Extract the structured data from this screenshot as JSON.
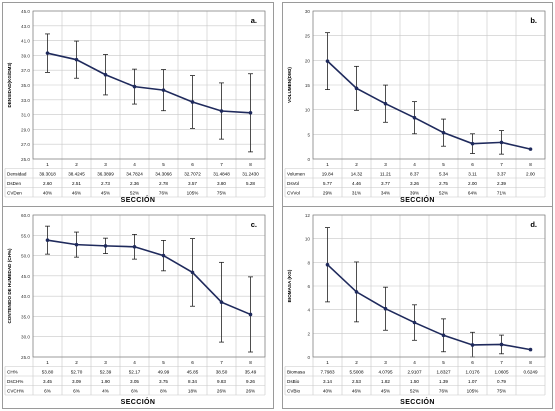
{
  "chart_data": [
    {
      "id": "a",
      "type": "line",
      "panel_letter": "a.",
      "ylabel": "DENSIDAD(KG/DM3)",
      "xlabel": "SECCIÓN",
      "ylim": [
        25.0,
        45.0
      ],
      "yticks": [
        "25.0",
        "27.0",
        "29.0",
        "31.0",
        "33.0",
        "35.0",
        "37.0",
        "39.0",
        "41.0",
        "43.0",
        "45.0"
      ],
      "categories": [
        "1",
        "2",
        "3",
        "4",
        "5",
        "6",
        "7",
        "8"
      ],
      "series": [
        {
          "values": [
            39.3018,
            38.4245,
            36.3899,
            34.7824,
            34.3066,
            32.7072,
            31.4848,
            31.243
          ],
          "errors": [
            2.6,
            2.51,
            2.73,
            2.36,
            2.78,
            3.57,
            3.8,
            5.28
          ]
        }
      ],
      "table": [
        {
          "label": "Densidad",
          "values": [
            "39.3018",
            "38.4245",
            "36.3899",
            "34.7824",
            "34.3066",
            "32.7072",
            "31.4848",
            "31.2430"
          ]
        },
        {
          "label": "DsDen",
          "values": [
            "2.60",
            "2.51",
            "2.73",
            "2.36",
            "2.78",
            "3.57",
            "3.80",
            "5.28"
          ]
        },
        {
          "label": "CVDen",
          "values": [
            "40%",
            "46%",
            "45%",
            "52%",
            "76%",
            "105%",
            "75%",
            ""
          ]
        }
      ]
    },
    {
      "id": "b",
      "type": "line",
      "panel_letter": "b.",
      "ylabel": "VOLUMEN(DM3)",
      "xlabel": "SECCIÓN",
      "ylim": [
        0,
        30
      ],
      "yticks": [
        "0",
        "5",
        "10",
        "15",
        "20",
        "25",
        "30"
      ],
      "categories": [
        "1",
        "2",
        "3",
        "4",
        "5",
        "6",
        "7",
        "8"
      ],
      "series": [
        {
          "values": [
            19.84,
            14.32,
            11.21,
            8.37,
            5.34,
            3.11,
            3.37,
            2.0
          ],
          "errors": [
            5.77,
            4.46,
            3.77,
            3.26,
            2.75,
            2.0,
            2.39,
            0
          ]
        }
      ],
      "table": [
        {
          "label": "Volumen",
          "values": [
            "19.84",
            "14.32",
            "11.21",
            "8.37",
            "5.34",
            "3.11",
            "3.37",
            "2.00"
          ]
        },
        {
          "label": "DsVol",
          "values": [
            "5.77",
            "4.46",
            "3.77",
            "3.26",
            "2.75",
            "2.00",
            "2.39",
            ""
          ]
        },
        {
          "label": "CVVol",
          "values": [
            "29%",
            "31%",
            "34%",
            "39%",
            "52%",
            "64%",
            "71%",
            ""
          ]
        }
      ]
    },
    {
      "id": "c",
      "type": "line",
      "panel_letter": "c.",
      "ylabel": "CONTENIDO DE HUMEDAD (CH%)",
      "xlabel": "SECCIÓN",
      "ylim": [
        25.0,
        60.0
      ],
      "yticks": [
        "25.0",
        "30.0",
        "35.0",
        "40.0",
        "45.0",
        "50.0",
        "55.0",
        "60.0"
      ],
      "categories": [
        "1",
        "2",
        "3",
        "4",
        "5",
        "6",
        "7",
        "8"
      ],
      "series": [
        {
          "values": [
            53.8,
            52.7,
            52.39,
            52.17,
            49.99,
            45.85,
            38.5,
            35.49
          ],
          "errors": [
            3.45,
            3.09,
            1.9,
            3.05,
            3.75,
            8.34,
            9.83,
            9.26
          ]
        }
      ],
      "table": [
        {
          "label": "CH%",
          "values": [
            "53.80",
            "52.70",
            "52.39",
            "52.17",
            "49.99",
            "45.85",
            "38.50",
            "35.49"
          ]
        },
        {
          "label": "DsCH%",
          "values": [
            "3.45",
            "3.09",
            "1.90",
            "3.05",
            "3.75",
            "8.34",
            "9.83",
            "9.26"
          ]
        },
        {
          "label": "CVCH%",
          "values": [
            "6%",
            "6%",
            "4%",
            "6%",
            "8%",
            "18%",
            "26%",
            "26%"
          ]
        }
      ]
    },
    {
      "id": "d",
      "type": "line",
      "panel_letter": "d.",
      "ylabel": "BIOMASA (KG)",
      "xlabel": "SECCIÓN",
      "ylim": [
        0,
        12
      ],
      "yticks": [
        "0",
        "2",
        "4",
        "6",
        "8",
        "10",
        "12"
      ],
      "categories": [
        "1",
        "2",
        "3",
        "4",
        "5",
        "6",
        "7",
        "8"
      ],
      "series": [
        {
          "values": [
            7.7983,
            5.5008,
            4.0795,
            2.9107,
            1.8327,
            1.0176,
            1.0605,
            0.6249
          ],
          "errors": [
            3.14,
            2.53,
            1.82,
            1.5,
            1.39,
            1.07,
            0.79,
            0
          ]
        }
      ],
      "table": [
        {
          "label": "Biomasa",
          "values": [
            "7.7983",
            "5.5008",
            "4.0795",
            "2.9107",
            "1.8327",
            "1.0176",
            "1.0605",
            "0.6249"
          ]
        },
        {
          "label": "DsBio",
          "values": [
            "3.14",
            "2.53",
            "1.82",
            "1.50",
            "1.39",
            "1.07",
            "0.79",
            ""
          ]
        },
        {
          "label": "CVBio",
          "values": [
            "40%",
            "46%",
            "45%",
            "52%",
            "76%",
            "105%",
            "75%",
            ""
          ]
        }
      ]
    }
  ],
  "colors": {
    "line": "#1f2a5c",
    "errorbar": "#222222",
    "grid": "#c8c8c8",
    "frame": "#9a9a9a"
  }
}
